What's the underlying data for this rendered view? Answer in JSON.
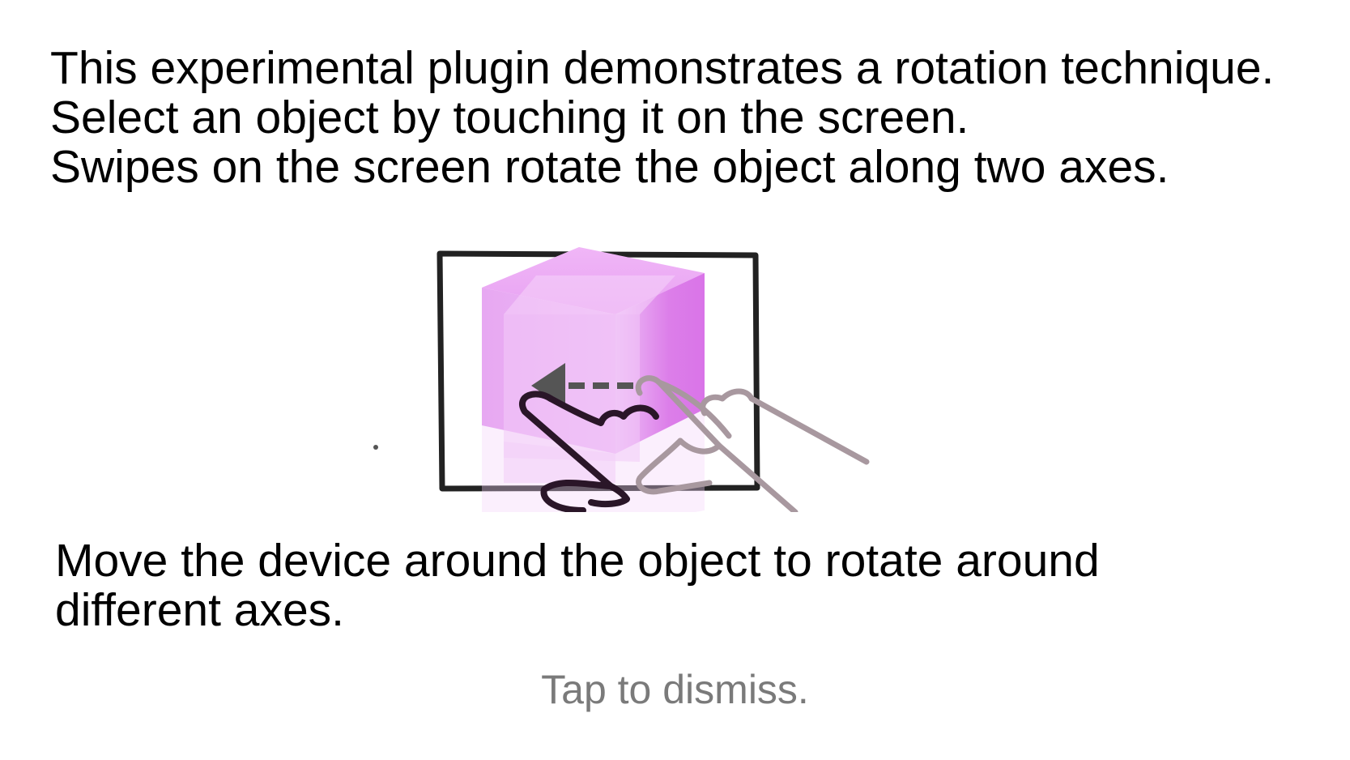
{
  "intro": {
    "lines": [
      "This experimental plugin demonstrates a rotation technique.",
      "Select an object by touching it on the screen.",
      "Swipes on the screen rotate the object along two axes."
    ]
  },
  "illustration": {
    "icons": [
      "screen-frame-icon",
      "cube-icon",
      "swipe-left-arrow-icon",
      "hand-icon"
    ],
    "colors": {
      "cube": "#e9a6f3",
      "frame": "#222222",
      "arrow": "#555555",
      "hand_front": "#2a1628",
      "hand_back": "#a8989f"
    }
  },
  "hint": {
    "text": "Move the device around the object to rotate around different axes."
  },
  "dismiss": {
    "label": "Tap to dismiss."
  }
}
